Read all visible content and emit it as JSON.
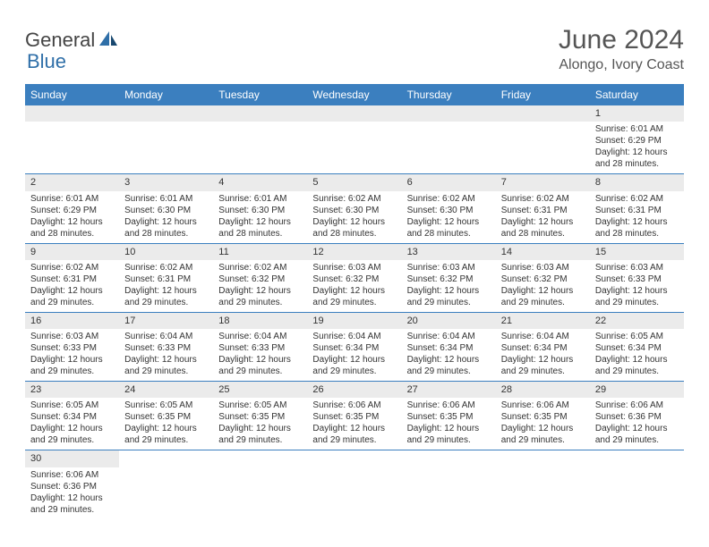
{
  "logo": {
    "part1": "General",
    "part2": "Blue"
  },
  "title": "June 2024",
  "subtitle": "Alongo, Ivory Coast",
  "colors": {
    "header_bg": "#3b7fbf",
    "header_text": "#ffffff",
    "daybar_bg": "#ebebeb",
    "border": "#3b7fbf",
    "logo_accent": "#2f6fa8",
    "title_color": "#555555"
  },
  "weekdays": [
    "Sunday",
    "Monday",
    "Tuesday",
    "Wednesday",
    "Thursday",
    "Friday",
    "Saturday"
  ],
  "weeks": [
    [
      null,
      null,
      null,
      null,
      null,
      null,
      {
        "n": "1",
        "sunrise": "Sunrise: 6:01 AM",
        "sunset": "Sunset: 6:29 PM",
        "day1": "Daylight: 12 hours",
        "day2": "and 28 minutes."
      }
    ],
    [
      {
        "n": "2",
        "sunrise": "Sunrise: 6:01 AM",
        "sunset": "Sunset: 6:29 PM",
        "day1": "Daylight: 12 hours",
        "day2": "and 28 minutes."
      },
      {
        "n": "3",
        "sunrise": "Sunrise: 6:01 AM",
        "sunset": "Sunset: 6:30 PM",
        "day1": "Daylight: 12 hours",
        "day2": "and 28 minutes."
      },
      {
        "n": "4",
        "sunrise": "Sunrise: 6:01 AM",
        "sunset": "Sunset: 6:30 PM",
        "day1": "Daylight: 12 hours",
        "day2": "and 28 minutes."
      },
      {
        "n": "5",
        "sunrise": "Sunrise: 6:02 AM",
        "sunset": "Sunset: 6:30 PM",
        "day1": "Daylight: 12 hours",
        "day2": "and 28 minutes."
      },
      {
        "n": "6",
        "sunrise": "Sunrise: 6:02 AM",
        "sunset": "Sunset: 6:30 PM",
        "day1": "Daylight: 12 hours",
        "day2": "and 28 minutes."
      },
      {
        "n": "7",
        "sunrise": "Sunrise: 6:02 AM",
        "sunset": "Sunset: 6:31 PM",
        "day1": "Daylight: 12 hours",
        "day2": "and 28 minutes."
      },
      {
        "n": "8",
        "sunrise": "Sunrise: 6:02 AM",
        "sunset": "Sunset: 6:31 PM",
        "day1": "Daylight: 12 hours",
        "day2": "and 28 minutes."
      }
    ],
    [
      {
        "n": "9",
        "sunrise": "Sunrise: 6:02 AM",
        "sunset": "Sunset: 6:31 PM",
        "day1": "Daylight: 12 hours",
        "day2": "and 29 minutes."
      },
      {
        "n": "10",
        "sunrise": "Sunrise: 6:02 AM",
        "sunset": "Sunset: 6:31 PM",
        "day1": "Daylight: 12 hours",
        "day2": "and 29 minutes."
      },
      {
        "n": "11",
        "sunrise": "Sunrise: 6:02 AM",
        "sunset": "Sunset: 6:32 PM",
        "day1": "Daylight: 12 hours",
        "day2": "and 29 minutes."
      },
      {
        "n": "12",
        "sunrise": "Sunrise: 6:03 AM",
        "sunset": "Sunset: 6:32 PM",
        "day1": "Daylight: 12 hours",
        "day2": "and 29 minutes."
      },
      {
        "n": "13",
        "sunrise": "Sunrise: 6:03 AM",
        "sunset": "Sunset: 6:32 PM",
        "day1": "Daylight: 12 hours",
        "day2": "and 29 minutes."
      },
      {
        "n": "14",
        "sunrise": "Sunrise: 6:03 AM",
        "sunset": "Sunset: 6:32 PM",
        "day1": "Daylight: 12 hours",
        "day2": "and 29 minutes."
      },
      {
        "n": "15",
        "sunrise": "Sunrise: 6:03 AM",
        "sunset": "Sunset: 6:33 PM",
        "day1": "Daylight: 12 hours",
        "day2": "and 29 minutes."
      }
    ],
    [
      {
        "n": "16",
        "sunrise": "Sunrise: 6:03 AM",
        "sunset": "Sunset: 6:33 PM",
        "day1": "Daylight: 12 hours",
        "day2": "and 29 minutes."
      },
      {
        "n": "17",
        "sunrise": "Sunrise: 6:04 AM",
        "sunset": "Sunset: 6:33 PM",
        "day1": "Daylight: 12 hours",
        "day2": "and 29 minutes."
      },
      {
        "n": "18",
        "sunrise": "Sunrise: 6:04 AM",
        "sunset": "Sunset: 6:33 PM",
        "day1": "Daylight: 12 hours",
        "day2": "and 29 minutes."
      },
      {
        "n": "19",
        "sunrise": "Sunrise: 6:04 AM",
        "sunset": "Sunset: 6:34 PM",
        "day1": "Daylight: 12 hours",
        "day2": "and 29 minutes."
      },
      {
        "n": "20",
        "sunrise": "Sunrise: 6:04 AM",
        "sunset": "Sunset: 6:34 PM",
        "day1": "Daylight: 12 hours",
        "day2": "and 29 minutes."
      },
      {
        "n": "21",
        "sunrise": "Sunrise: 6:04 AM",
        "sunset": "Sunset: 6:34 PM",
        "day1": "Daylight: 12 hours",
        "day2": "and 29 minutes."
      },
      {
        "n": "22",
        "sunrise": "Sunrise: 6:05 AM",
        "sunset": "Sunset: 6:34 PM",
        "day1": "Daylight: 12 hours",
        "day2": "and 29 minutes."
      }
    ],
    [
      {
        "n": "23",
        "sunrise": "Sunrise: 6:05 AM",
        "sunset": "Sunset: 6:34 PM",
        "day1": "Daylight: 12 hours",
        "day2": "and 29 minutes."
      },
      {
        "n": "24",
        "sunrise": "Sunrise: 6:05 AM",
        "sunset": "Sunset: 6:35 PM",
        "day1": "Daylight: 12 hours",
        "day2": "and 29 minutes."
      },
      {
        "n": "25",
        "sunrise": "Sunrise: 6:05 AM",
        "sunset": "Sunset: 6:35 PM",
        "day1": "Daylight: 12 hours",
        "day2": "and 29 minutes."
      },
      {
        "n": "26",
        "sunrise": "Sunrise: 6:06 AM",
        "sunset": "Sunset: 6:35 PM",
        "day1": "Daylight: 12 hours",
        "day2": "and 29 minutes."
      },
      {
        "n": "27",
        "sunrise": "Sunrise: 6:06 AM",
        "sunset": "Sunset: 6:35 PM",
        "day1": "Daylight: 12 hours",
        "day2": "and 29 minutes."
      },
      {
        "n": "28",
        "sunrise": "Sunrise: 6:06 AM",
        "sunset": "Sunset: 6:35 PM",
        "day1": "Daylight: 12 hours",
        "day2": "and 29 minutes."
      },
      {
        "n": "29",
        "sunrise": "Sunrise: 6:06 AM",
        "sunset": "Sunset: 6:36 PM",
        "day1": "Daylight: 12 hours",
        "day2": "and 29 minutes."
      }
    ],
    [
      {
        "n": "30",
        "sunrise": "Sunrise: 6:06 AM",
        "sunset": "Sunset: 6:36 PM",
        "day1": "Daylight: 12 hours",
        "day2": "and 29 minutes."
      },
      null,
      null,
      null,
      null,
      null,
      null
    ]
  ]
}
